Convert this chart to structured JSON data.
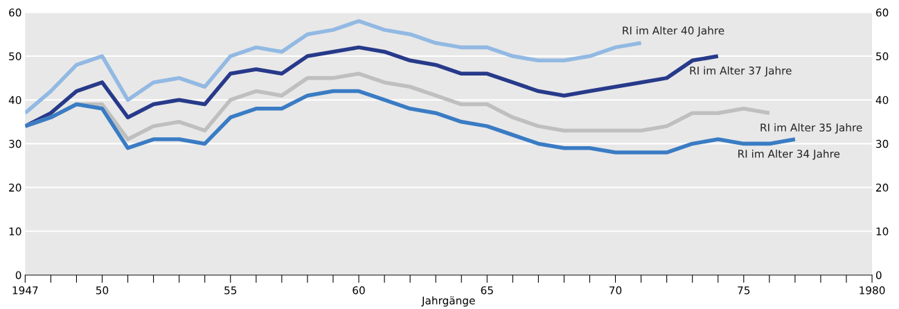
{
  "chart_data": {
    "type": "line",
    "xlabel": "Jahrgänge",
    "x": [
      1947,
      1948,
      1949,
      1950,
      1951,
      1952,
      1953,
      1954,
      1955,
      1956,
      1957,
      1958,
      1959,
      1960,
      1961,
      1962,
      1963,
      1964,
      1965,
      1966,
      1967,
      1968,
      1969,
      1970,
      1971,
      1972,
      1973,
      1974,
      1975,
      1976,
      1977
    ],
    "series": [
      {
        "name": "RI im Alter 40 Jahre",
        "color": "#92b9e3",
        "values": [
          37,
          42,
          48,
          50,
          40,
          44,
          45,
          43,
          50,
          52,
          51,
          55,
          56,
          58,
          56,
          55,
          53,
          52,
          52,
          50,
          49,
          49,
          50,
          52,
          53,
          null,
          null,
          null,
          null,
          null,
          null
        ]
      },
      {
        "name": "RI im Alter 37 Jahre",
        "color": "#273a8a",
        "values": [
          34,
          37,
          42,
          44,
          36,
          39,
          40,
          39,
          46,
          47,
          46,
          50,
          51,
          52,
          51,
          49,
          48,
          46,
          46,
          44,
          42,
          41,
          42,
          43,
          44,
          45,
          49,
          50,
          null,
          null,
          null
        ]
      },
      {
        "name": "RI im Alter 35 Jahre",
        "color": "#bfbfbf",
        "values": [
          34,
          36,
          39,
          39,
          31,
          34,
          35,
          33,
          40,
          42,
          41,
          45,
          45,
          46,
          44,
          43,
          41,
          39,
          39,
          36,
          34,
          33,
          33,
          33,
          33,
          34,
          37,
          37,
          38,
          37,
          null
        ]
      },
      {
        "name": "RI im Alter 34 Jahre",
        "color": "#3a7cc4",
        "values": [
          34,
          36,
          39,
          38,
          29,
          31,
          31,
          30,
          36,
          38,
          38,
          41,
          42,
          42,
          40,
          38,
          37,
          35,
          34,
          32,
          30,
          29,
          29,
          28,
          28,
          28,
          30,
          31,
          30,
          30,
          31
        ]
      }
    ],
    "xlim": [
      1947,
      1980
    ],
    "xticks": [
      1947,
      {
        "value": 1948,
        "label": null
      },
      {
        "value": 1949,
        "label": null
      },
      {
        "value": 1950,
        "label": "50"
      },
      {
        "value": 1951,
        "label": null
      },
      {
        "value": 1952,
        "label": null
      },
      {
        "value": 1953,
        "label": null
      },
      {
        "value": 1954,
        "label": null
      },
      {
        "value": 1955,
        "label": "55"
      },
      {
        "value": 1956,
        "label": null
      },
      {
        "value": 1957,
        "label": null
      },
      {
        "value": 1958,
        "label": null
      },
      {
        "value": 1959,
        "label": null
      },
      {
        "value": 1960,
        "label": "60"
      },
      {
        "value": 1961,
        "label": null
      },
      {
        "value": 1962,
        "label": null
      },
      {
        "value": 1963,
        "label": null
      },
      {
        "value": 1964,
        "label": null
      },
      {
        "value": 1965,
        "label": "65"
      },
      {
        "value": 1966,
        "label": null
      },
      {
        "value": 1967,
        "label": null
      },
      {
        "value": 1968,
        "label": null
      },
      {
        "value": 1969,
        "label": null
      },
      {
        "value": 1970,
        "label": "70"
      },
      {
        "value": 1971,
        "label": null
      },
      {
        "value": 1972,
        "label": null
      },
      {
        "value": 1973,
        "label": null
      },
      {
        "value": 1974,
        "label": null
      },
      {
        "value": 1975,
        "label": "75"
      },
      {
        "value": 1976,
        "label": null
      },
      {
        "value": 1977,
        "label": null
      },
      {
        "value": 1978,
        "label": null
      },
      {
        "value": 1979,
        "label": null
      },
      1980
    ],
    "ylim": [
      0,
      60
    ],
    "yticks": [
      0,
      10,
      20,
      30,
      40,
      50,
      60
    ],
    "y2lim": [
      0,
      60
    ],
    "y2ticks": [
      0,
      10,
      20,
      30,
      40,
      50,
      60
    ],
    "grid": "y",
    "legend": false,
    "marker": "none",
    "line_style": "solid"
  }
}
